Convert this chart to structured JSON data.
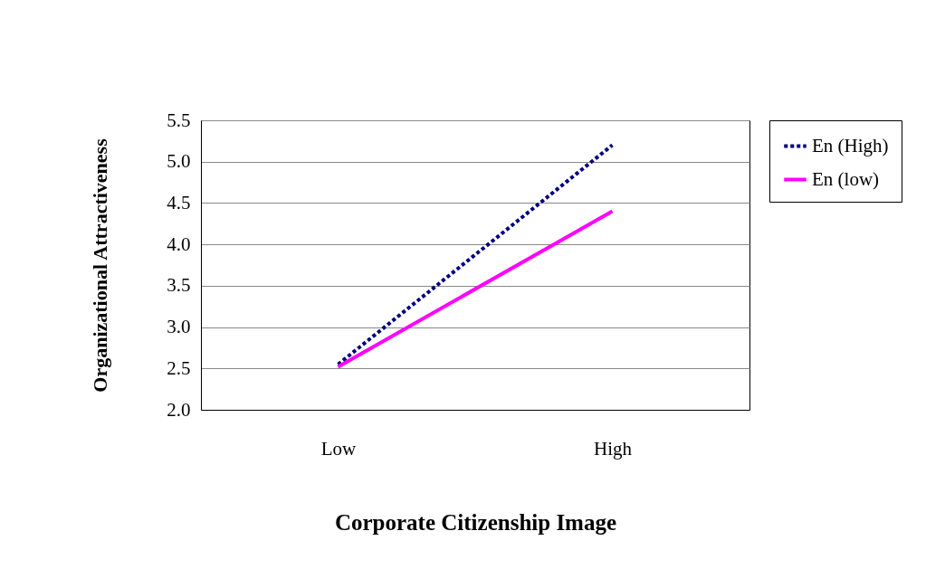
{
  "chart_data": {
    "type": "line",
    "xlabel": "Corporate Citizenship Image",
    "ylabel": "Organizational Attractiveness",
    "categories": [
      "Low",
      "High"
    ],
    "series": [
      {
        "name": "En (High)",
        "color": "#000080",
        "line_style": "dotted",
        "values": [
          2.55,
          5.2
        ]
      },
      {
        "name": "En (low)",
        "color": "#ff00ff",
        "line_style": "solid",
        "values": [
          2.52,
          4.4
        ]
      }
    ],
    "ylim": [
      2.0,
      5.5
    ],
    "yticks": [
      {
        "value": 2.0,
        "label": "2.0"
      },
      {
        "value": 2.5,
        "label": "2.5"
      },
      {
        "value": 3.0,
        "label": "3.0"
      },
      {
        "value": 3.5,
        "label": "3.5"
      },
      {
        "value": 4.0,
        "label": "4.0"
      },
      {
        "value": 4.5,
        "label": "4.5"
      },
      {
        "value": 5.0,
        "label": "5.0"
      },
      {
        "value": 5.5,
        "label": "5.5"
      }
    ],
    "grid": "y",
    "legend": "right",
    "marker": "none"
  }
}
